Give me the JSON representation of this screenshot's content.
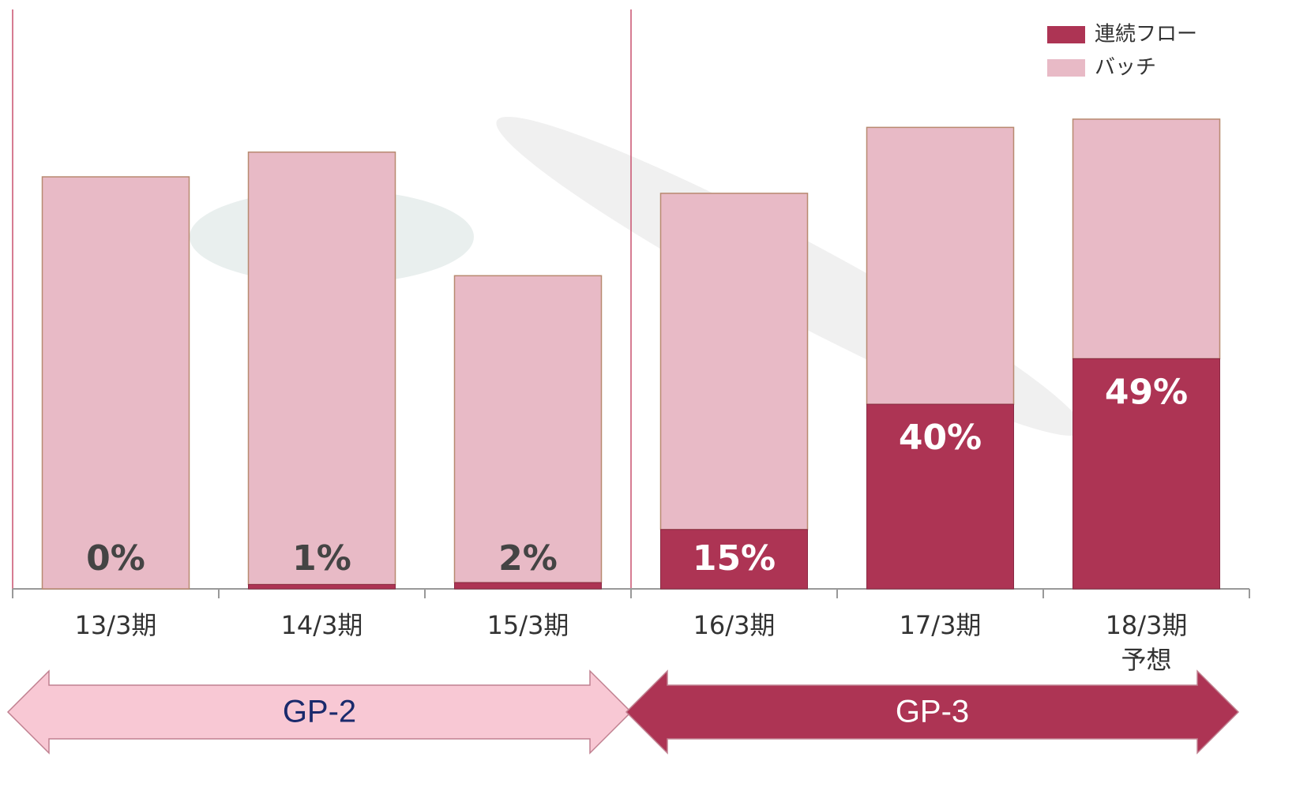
{
  "chart_data": {
    "type": "stacked_bar",
    "categories": [
      "13/3期",
      "14/3期",
      "15/3期",
      "16/3期",
      "17/3期",
      "18/3期\n予想"
    ],
    "totals": [
      100,
      106,
      76,
      96,
      112,
      114
    ],
    "series": [
      {
        "name": "連続フロー",
        "color": "#ad3454",
        "values": [
          0,
          1,
          2,
          15,
          40,
          49
        ],
        "value_labels": [
          "0%",
          "1%",
          "2%",
          "15%",
          "40%",
          "49%"
        ]
      },
      {
        "name": "バッチ",
        "color": "#e8bac6"
      }
    ],
    "ylim": [
      0,
      141
    ],
    "legend": "top-right",
    "phases": [
      {
        "label": "GP-2",
        "from": 0,
        "to": 2,
        "color": "#f8c8d4",
        "text_color": "#1a2a6c"
      },
      {
        "label": "GP-3",
        "from": 3,
        "to": 5,
        "color": "#ad3454",
        "text_color": "#ffffff"
      }
    ]
  }
}
